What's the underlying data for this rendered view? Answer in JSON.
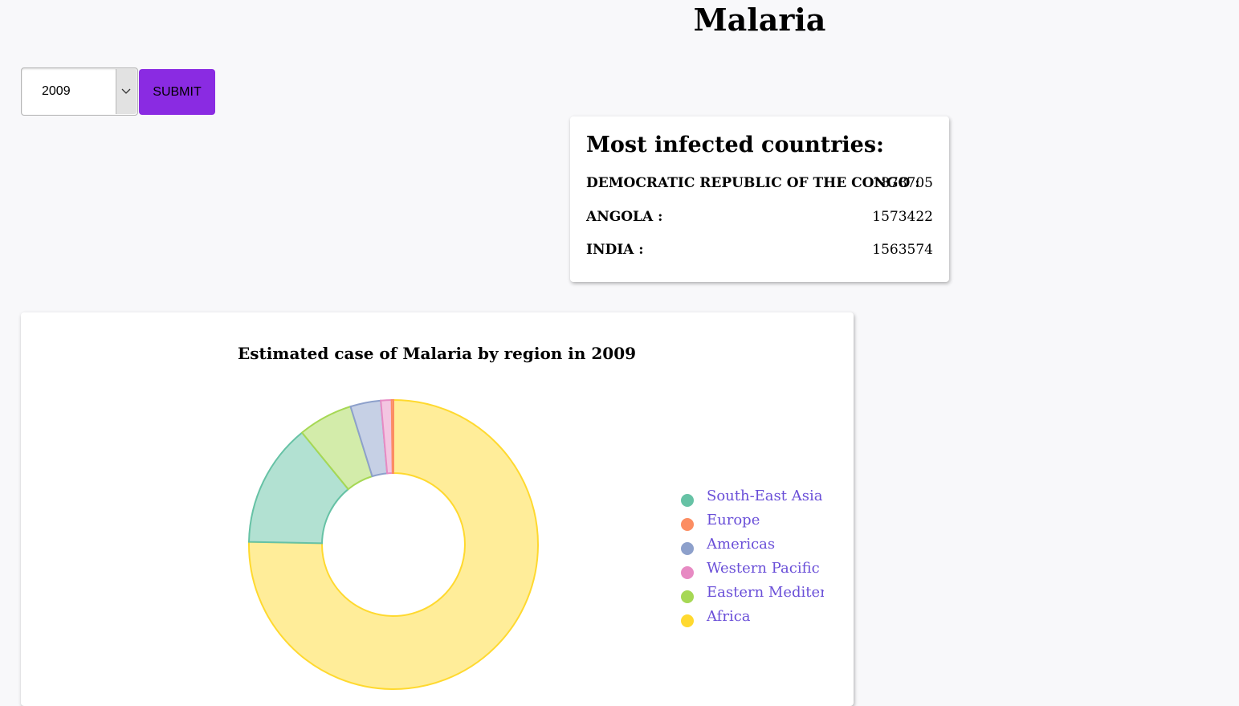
{
  "page": {
    "title": "Malaria"
  },
  "controls": {
    "year_selected": "2009",
    "submit_label": "SUBMIT"
  },
  "infected": {
    "title": "Most infected countries:",
    "countries": [
      {
        "name": "DEMOCRATIC REPUBLIC OF THE CONGO :",
        "value": "1878705"
      },
      {
        "name": "ANGOLA :",
        "value": "1573422"
      },
      {
        "name": "INDIA :",
        "value": "1563574"
      }
    ]
  },
  "chart_data": {
    "type": "pie",
    "title": "Estimated case of Malaria by region in 2009",
    "donut": true,
    "legend_position": "right",
    "slices": [
      {
        "name": "Africa",
        "value": 75.3,
        "color": "#ffd92f",
        "fill": "#ffed99"
      },
      {
        "name": "South-East Asia",
        "value": 13.8,
        "color": "#66c2a5",
        "fill": "#b2e1d2"
      },
      {
        "name": "Eastern Mediterranean",
        "value": 6.1,
        "color": "#a6d854",
        "fill": "#d3ecaa"
      },
      {
        "name": "Americas",
        "value": 3.4,
        "color": "#8da0cb",
        "fill": "#c6d0e5"
      },
      {
        "name": "Western Pacific",
        "value": 1.2,
        "color": "#e78ac3",
        "fill": "#f3c5e1"
      },
      {
        "name": "Europe",
        "value": 0.2,
        "color": "#fc8d62",
        "fill": "#fec6b0"
      }
    ],
    "legend": [
      {
        "name": "South-East Asia",
        "color": "#66c2a5"
      },
      {
        "name": "Europe",
        "color": "#fc8d62"
      },
      {
        "name": "Americas",
        "color": "#8da0cb"
      },
      {
        "name": "Western Pacific",
        "color": "#e78ac3"
      },
      {
        "name": "Eastern Mediterranean",
        "color": "#a6d854"
      },
      {
        "name": "Africa",
        "color": "#ffd92f"
      }
    ]
  }
}
